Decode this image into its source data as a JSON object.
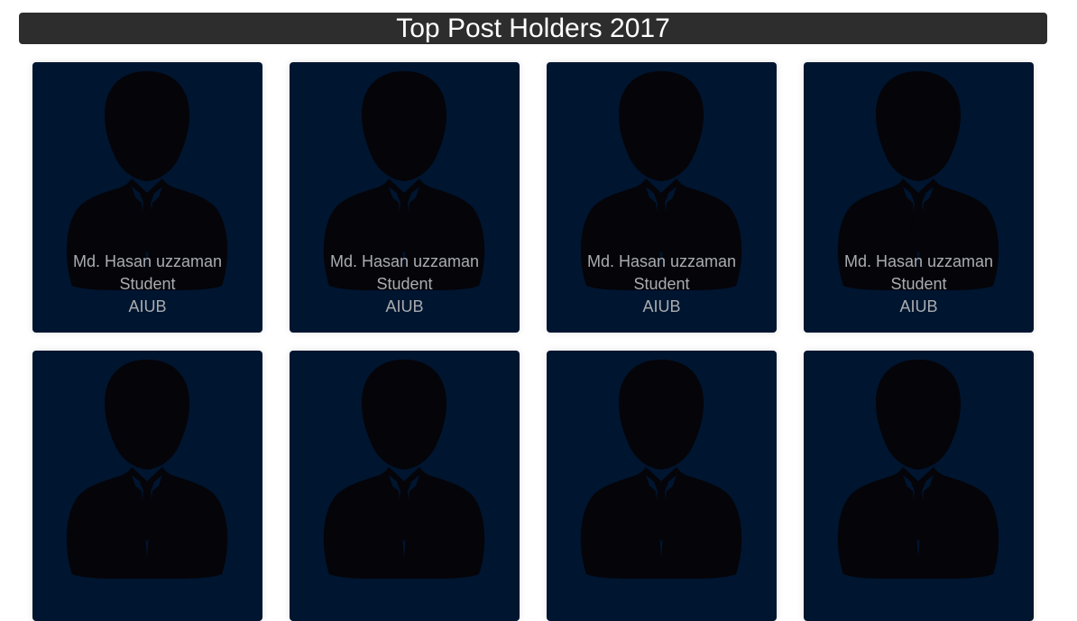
{
  "header": {
    "title": "Top Post Holders 2017"
  },
  "cards": [
    {
      "name": "Md. Hasan uzzaman",
      "role": "Student",
      "org": "AIUB",
      "icon": "person-silhouette-icon"
    },
    {
      "name": "Md. Hasan uzzaman",
      "role": "Student",
      "org": "AIUB",
      "icon": "person-silhouette-icon"
    },
    {
      "name": "Md. Hasan uzzaman",
      "role": "Student",
      "org": "AIUB",
      "icon": "person-silhouette-icon"
    },
    {
      "name": "Md. Hasan uzzaman",
      "role": "Student",
      "org": "AIUB",
      "icon": "person-silhouette-icon"
    },
    {
      "name": "",
      "role": "",
      "org": "",
      "icon": "person-silhouette-icon"
    },
    {
      "name": "",
      "role": "",
      "org": "",
      "icon": "person-silhouette-icon"
    },
    {
      "name": "",
      "role": "",
      "org": "",
      "icon": "person-silhouette-icon"
    },
    {
      "name": "",
      "role": "",
      "org": "",
      "icon": "person-silhouette-icon"
    }
  ],
  "colors": {
    "header_bg": "#2d2d2d",
    "card_bg": "#00152f",
    "silhouette": "#050409",
    "caption_text": "#a9acb0"
  }
}
